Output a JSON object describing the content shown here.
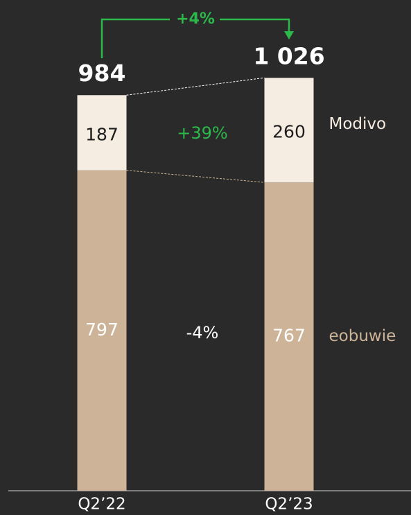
{
  "chart_data": {
    "type": "stacked_bar",
    "categories": [
      "Q2’22",
      "Q2’23"
    ],
    "series": [
      {
        "name": "eobuwie",
        "color": "#cdb397",
        "values": [
          797,
          767
        ]
      },
      {
        "name": "Modivo",
        "color": "#f5ede1",
        "values": [
          187,
          260
        ]
      }
    ],
    "totals": {
      "values": [
        984,
        1026
      ],
      "value_labels": [
        "984",
        "1 026"
      ]
    },
    "annotations": [
      "+4%",
      "+39%",
      "-4%"
    ],
    "accent_color": "#2db84a",
    "ylim": [
      0,
      1200
    ]
  }
}
